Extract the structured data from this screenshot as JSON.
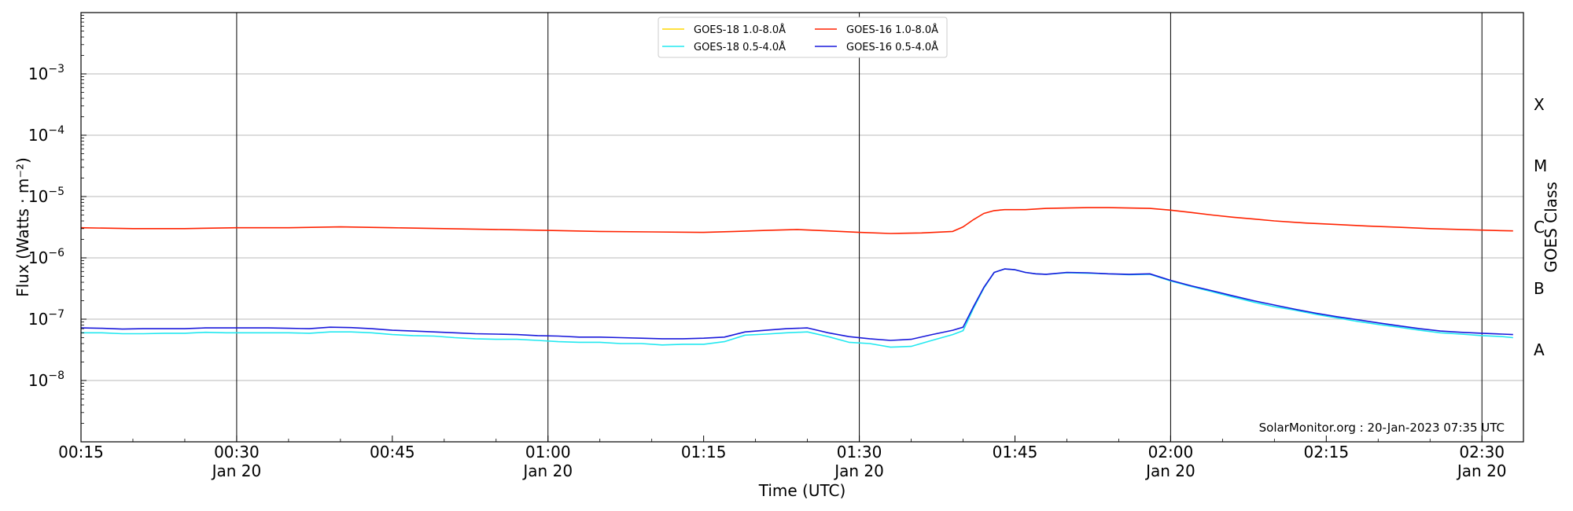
{
  "chart_data": {
    "type": "line",
    "xlabel": "Time (UTC)",
    "ylabel": "Flux (Watts · m⁻²)",
    "right_label": "GOES Class",
    "watermark": "SolarMonitor.org : 20-Jan-2023 07:35 UTC",
    "y_scale": "log",
    "ylim": [
      1e-09,
      0.01
    ],
    "xlim_minutes": [
      15,
      154
    ],
    "grid": "horizontal gridlines at each decade; vertical lines at half-hour marks",
    "legend_position": "top-center",
    "y_ticks": [
      {
        "exp": -8,
        "base": "10",
        "sup": "−8"
      },
      {
        "exp": -7,
        "base": "10",
        "sup": "−7"
      },
      {
        "exp": -6,
        "base": "10",
        "sup": "−6"
      },
      {
        "exp": -5,
        "base": "10",
        "sup": "−5"
      },
      {
        "exp": -4,
        "base": "10",
        "sup": "−4"
      },
      {
        "exp": -3,
        "base": "10",
        "sup": "−3"
      }
    ],
    "x_ticks": [
      {
        "minute": 15,
        "time": "00:15",
        "date": ""
      },
      {
        "minute": 30,
        "time": "00:30",
        "date": "Jan 20"
      },
      {
        "minute": 45,
        "time": "00:45",
        "date": ""
      },
      {
        "minute": 60,
        "time": "01:00",
        "date": "Jan 20"
      },
      {
        "minute": 75,
        "time": "01:15",
        "date": ""
      },
      {
        "minute": 90,
        "time": "01:30",
        "date": "Jan 20"
      },
      {
        "minute": 105,
        "time": "01:45",
        "date": ""
      },
      {
        "minute": 120,
        "time": "02:00",
        "date": "Jan 20"
      },
      {
        "minute": 135,
        "time": "02:15",
        "date": ""
      },
      {
        "minute": 150,
        "time": "02:30",
        "date": "Jan 20"
      }
    ],
    "goes_classes": [
      {
        "label": "X",
        "exp": -3.5
      },
      {
        "label": "M",
        "exp": -4.5
      },
      {
        "label": "C",
        "exp": -5.5
      },
      {
        "label": "B",
        "exp": -6.5
      },
      {
        "label": "A",
        "exp": -7.5
      }
    ],
    "series": [
      {
        "name": "GOES-18 1.0-8.0Å",
        "color": "#ffd700",
        "points": []
      },
      {
        "name": "GOES-18 0.5-4.0Å",
        "color": "#22e8f0",
        "points": [
          [
            15,
            6e-08
          ],
          [
            17,
            6e-08
          ],
          [
            19,
            5.8e-08
          ],
          [
            21,
            5.8e-08
          ],
          [
            23,
            5.9e-08
          ],
          [
            25,
            5.9e-08
          ],
          [
            27,
            6.1e-08
          ],
          [
            29,
            6e-08
          ],
          [
            31,
            6e-08
          ],
          [
            33,
            6e-08
          ],
          [
            35,
            6e-08
          ],
          [
            37,
            5.9e-08
          ],
          [
            39,
            6.2e-08
          ],
          [
            41,
            6.2e-08
          ],
          [
            43,
            6e-08
          ],
          [
            45,
            5.6e-08
          ],
          [
            47,
            5.4e-08
          ],
          [
            49,
            5.3e-08
          ],
          [
            51,
            5e-08
          ],
          [
            53,
            4.8e-08
          ],
          [
            55,
            4.7e-08
          ],
          [
            57,
            4.7e-08
          ],
          [
            59,
            4.5e-08
          ],
          [
            61,
            4.3e-08
          ],
          [
            63,
            4.2e-08
          ],
          [
            65,
            4.2e-08
          ],
          [
            67,
            4e-08
          ],
          [
            69,
            4e-08
          ],
          [
            71,
            3.8e-08
          ],
          [
            73,
            3.9e-08
          ],
          [
            75,
            3.9e-08
          ],
          [
            77,
            4.3e-08
          ],
          [
            79,
            5.5e-08
          ],
          [
            81,
            5.7e-08
          ],
          [
            83,
            6e-08
          ],
          [
            85,
            6.2e-08
          ],
          [
            87,
            5.2e-08
          ],
          [
            89,
            4.2e-08
          ],
          [
            91,
            4e-08
          ],
          [
            93,
            3.5e-08
          ],
          [
            95,
            3.6e-08
          ],
          [
            97,
            4.5e-08
          ],
          [
            99,
            5.6e-08
          ],
          [
            100,
            6.5e-08
          ],
          [
            101,
            1.5e-07
          ],
          [
            102,
            3.2e-07
          ],
          [
            103,
            5.8e-07
          ],
          [
            104,
            6.6e-07
          ],
          [
            105,
            6.4e-07
          ],
          [
            106,
            5.8e-07
          ],
          [
            107,
            5.5e-07
          ],
          [
            108,
            5.4e-07
          ],
          [
            110,
            5.7e-07
          ],
          [
            112,
            5.6e-07
          ],
          [
            114,
            5.5e-07
          ],
          [
            116,
            5.3e-07
          ],
          [
            118,
            5.4e-07
          ],
          [
            120,
            4.2e-07
          ],
          [
            122,
            3.4e-07
          ],
          [
            124,
            2.8e-07
          ],
          [
            126,
            2.3e-07
          ],
          [
            128,
            1.9e-07
          ],
          [
            130,
            1.6e-07
          ],
          [
            132,
            1.4e-07
          ],
          [
            134,
            1.2e-07
          ],
          [
            136,
            1.05e-07
          ],
          [
            138,
            9.2e-08
          ],
          [
            140,
            8.2e-08
          ],
          [
            142,
            7.4e-08
          ],
          [
            144,
            6.6e-08
          ],
          [
            146,
            6e-08
          ],
          [
            148,
            5.7e-08
          ],
          [
            150,
            5.4e-08
          ],
          [
            152,
            5.2e-08
          ],
          [
            153,
            5e-08
          ]
        ]
      },
      {
        "name": "GOES-16 1.0-8.0Å",
        "color": "#ff2200",
        "points": [
          [
            15,
            3.1e-06
          ],
          [
            20,
            3e-06
          ],
          [
            25,
            3e-06
          ],
          [
            30,
            3.1e-06
          ],
          [
            35,
            3.1e-06
          ],
          [
            40,
            3.2e-06
          ],
          [
            45,
            3.1e-06
          ],
          [
            50,
            3e-06
          ],
          [
            55,
            2.9e-06
          ],
          [
            60,
            2.8e-06
          ],
          [
            65,
            2.7e-06
          ],
          [
            70,
            2.65e-06
          ],
          [
            75,
            2.6e-06
          ],
          [
            78,
            2.7e-06
          ],
          [
            81,
            2.8e-06
          ],
          [
            84,
            2.9e-06
          ],
          [
            87,
            2.75e-06
          ],
          [
            90,
            2.6e-06
          ],
          [
            93,
            2.5e-06
          ],
          [
            96,
            2.55e-06
          ],
          [
            99,
            2.7e-06
          ],
          [
            100,
            3.2e-06
          ],
          [
            101,
            4.2e-06
          ],
          [
            102,
            5.3e-06
          ],
          [
            103,
            5.9e-06
          ],
          [
            104,
            6.1e-06
          ],
          [
            106,
            6.1e-06
          ],
          [
            108,
            6.4e-06
          ],
          [
            110,
            6.5e-06
          ],
          [
            112,
            6.6e-06
          ],
          [
            114,
            6.6e-06
          ],
          [
            116,
            6.5e-06
          ],
          [
            118,
            6.4e-06
          ],
          [
            120,
            6e-06
          ],
          [
            122,
            5.5e-06
          ],
          [
            124,
            5e-06
          ],
          [
            126,
            4.6e-06
          ],
          [
            128,
            4.3e-06
          ],
          [
            130,
            4e-06
          ],
          [
            133,
            3.7e-06
          ],
          [
            136,
            3.5e-06
          ],
          [
            139,
            3.3e-06
          ],
          [
            142,
            3.15e-06
          ],
          [
            145,
            3e-06
          ],
          [
            148,
            2.9e-06
          ],
          [
            151,
            2.8e-06
          ],
          [
            153,
            2.75e-06
          ]
        ]
      },
      {
        "name": "GOES-16 0.5-4.0Å",
        "color": "#1a1adb",
        "points": [
          [
            15,
            7.2e-08
          ],
          [
            17,
            7.1e-08
          ],
          [
            19,
            6.9e-08
          ],
          [
            21,
            7e-08
          ],
          [
            23,
            7e-08
          ],
          [
            25,
            7e-08
          ],
          [
            27,
            7.2e-08
          ],
          [
            29,
            7.2e-08
          ],
          [
            31,
            7.2e-08
          ],
          [
            33,
            7.2e-08
          ],
          [
            35,
            7.1e-08
          ],
          [
            37,
            7e-08
          ],
          [
            39,
            7.4e-08
          ],
          [
            41,
            7.3e-08
          ],
          [
            43,
            7e-08
          ],
          [
            45,
            6.6e-08
          ],
          [
            47,
            6.4e-08
          ],
          [
            49,
            6.2e-08
          ],
          [
            51,
            6e-08
          ],
          [
            53,
            5.8e-08
          ],
          [
            55,
            5.7e-08
          ],
          [
            57,
            5.6e-08
          ],
          [
            59,
            5.4e-08
          ],
          [
            61,
            5.3e-08
          ],
          [
            63,
            5.1e-08
          ],
          [
            65,
            5.1e-08
          ],
          [
            67,
            5e-08
          ],
          [
            69,
            4.9e-08
          ],
          [
            71,
            4.8e-08
          ],
          [
            73,
            4.8e-08
          ],
          [
            75,
            4.9e-08
          ],
          [
            77,
            5.1e-08
          ],
          [
            79,
            6.2e-08
          ],
          [
            81,
            6.6e-08
          ],
          [
            83,
            7e-08
          ],
          [
            85,
            7.2e-08
          ],
          [
            87,
            6e-08
          ],
          [
            89,
            5.2e-08
          ],
          [
            91,
            4.8e-08
          ],
          [
            93,
            4.5e-08
          ],
          [
            95,
            4.7e-08
          ],
          [
            97,
            5.6e-08
          ],
          [
            99,
            6.6e-08
          ],
          [
            100,
            7.4e-08
          ],
          [
            101,
            1.6e-07
          ],
          [
            102,
            3.3e-07
          ],
          [
            103,
            5.8e-07
          ],
          [
            104,
            6.6e-07
          ],
          [
            105,
            6.4e-07
          ],
          [
            106,
            5.8e-07
          ],
          [
            107,
            5.5e-07
          ],
          [
            108,
            5.4e-07
          ],
          [
            110,
            5.8e-07
          ],
          [
            112,
            5.7e-07
          ],
          [
            114,
            5.5e-07
          ],
          [
            116,
            5.4e-07
          ],
          [
            118,
            5.5e-07
          ],
          [
            120,
            4.3e-07
          ],
          [
            122,
            3.5e-07
          ],
          [
            124,
            2.9e-07
          ],
          [
            126,
            2.4e-07
          ],
          [
            128,
            2e-07
          ],
          [
            130,
            1.7e-07
          ],
          [
            132,
            1.45e-07
          ],
          [
            134,
            1.25e-07
          ],
          [
            136,
            1.1e-07
          ],
          [
            138,
            9.8e-08
          ],
          [
            140,
            8.7e-08
          ],
          [
            142,
            7.8e-08
          ],
          [
            144,
            7e-08
          ],
          [
            146,
            6.4e-08
          ],
          [
            148,
            6.1e-08
          ],
          [
            150,
            5.9e-08
          ],
          [
            152,
            5.7e-08
          ],
          [
            153,
            5.6e-08
          ]
        ]
      }
    ]
  }
}
